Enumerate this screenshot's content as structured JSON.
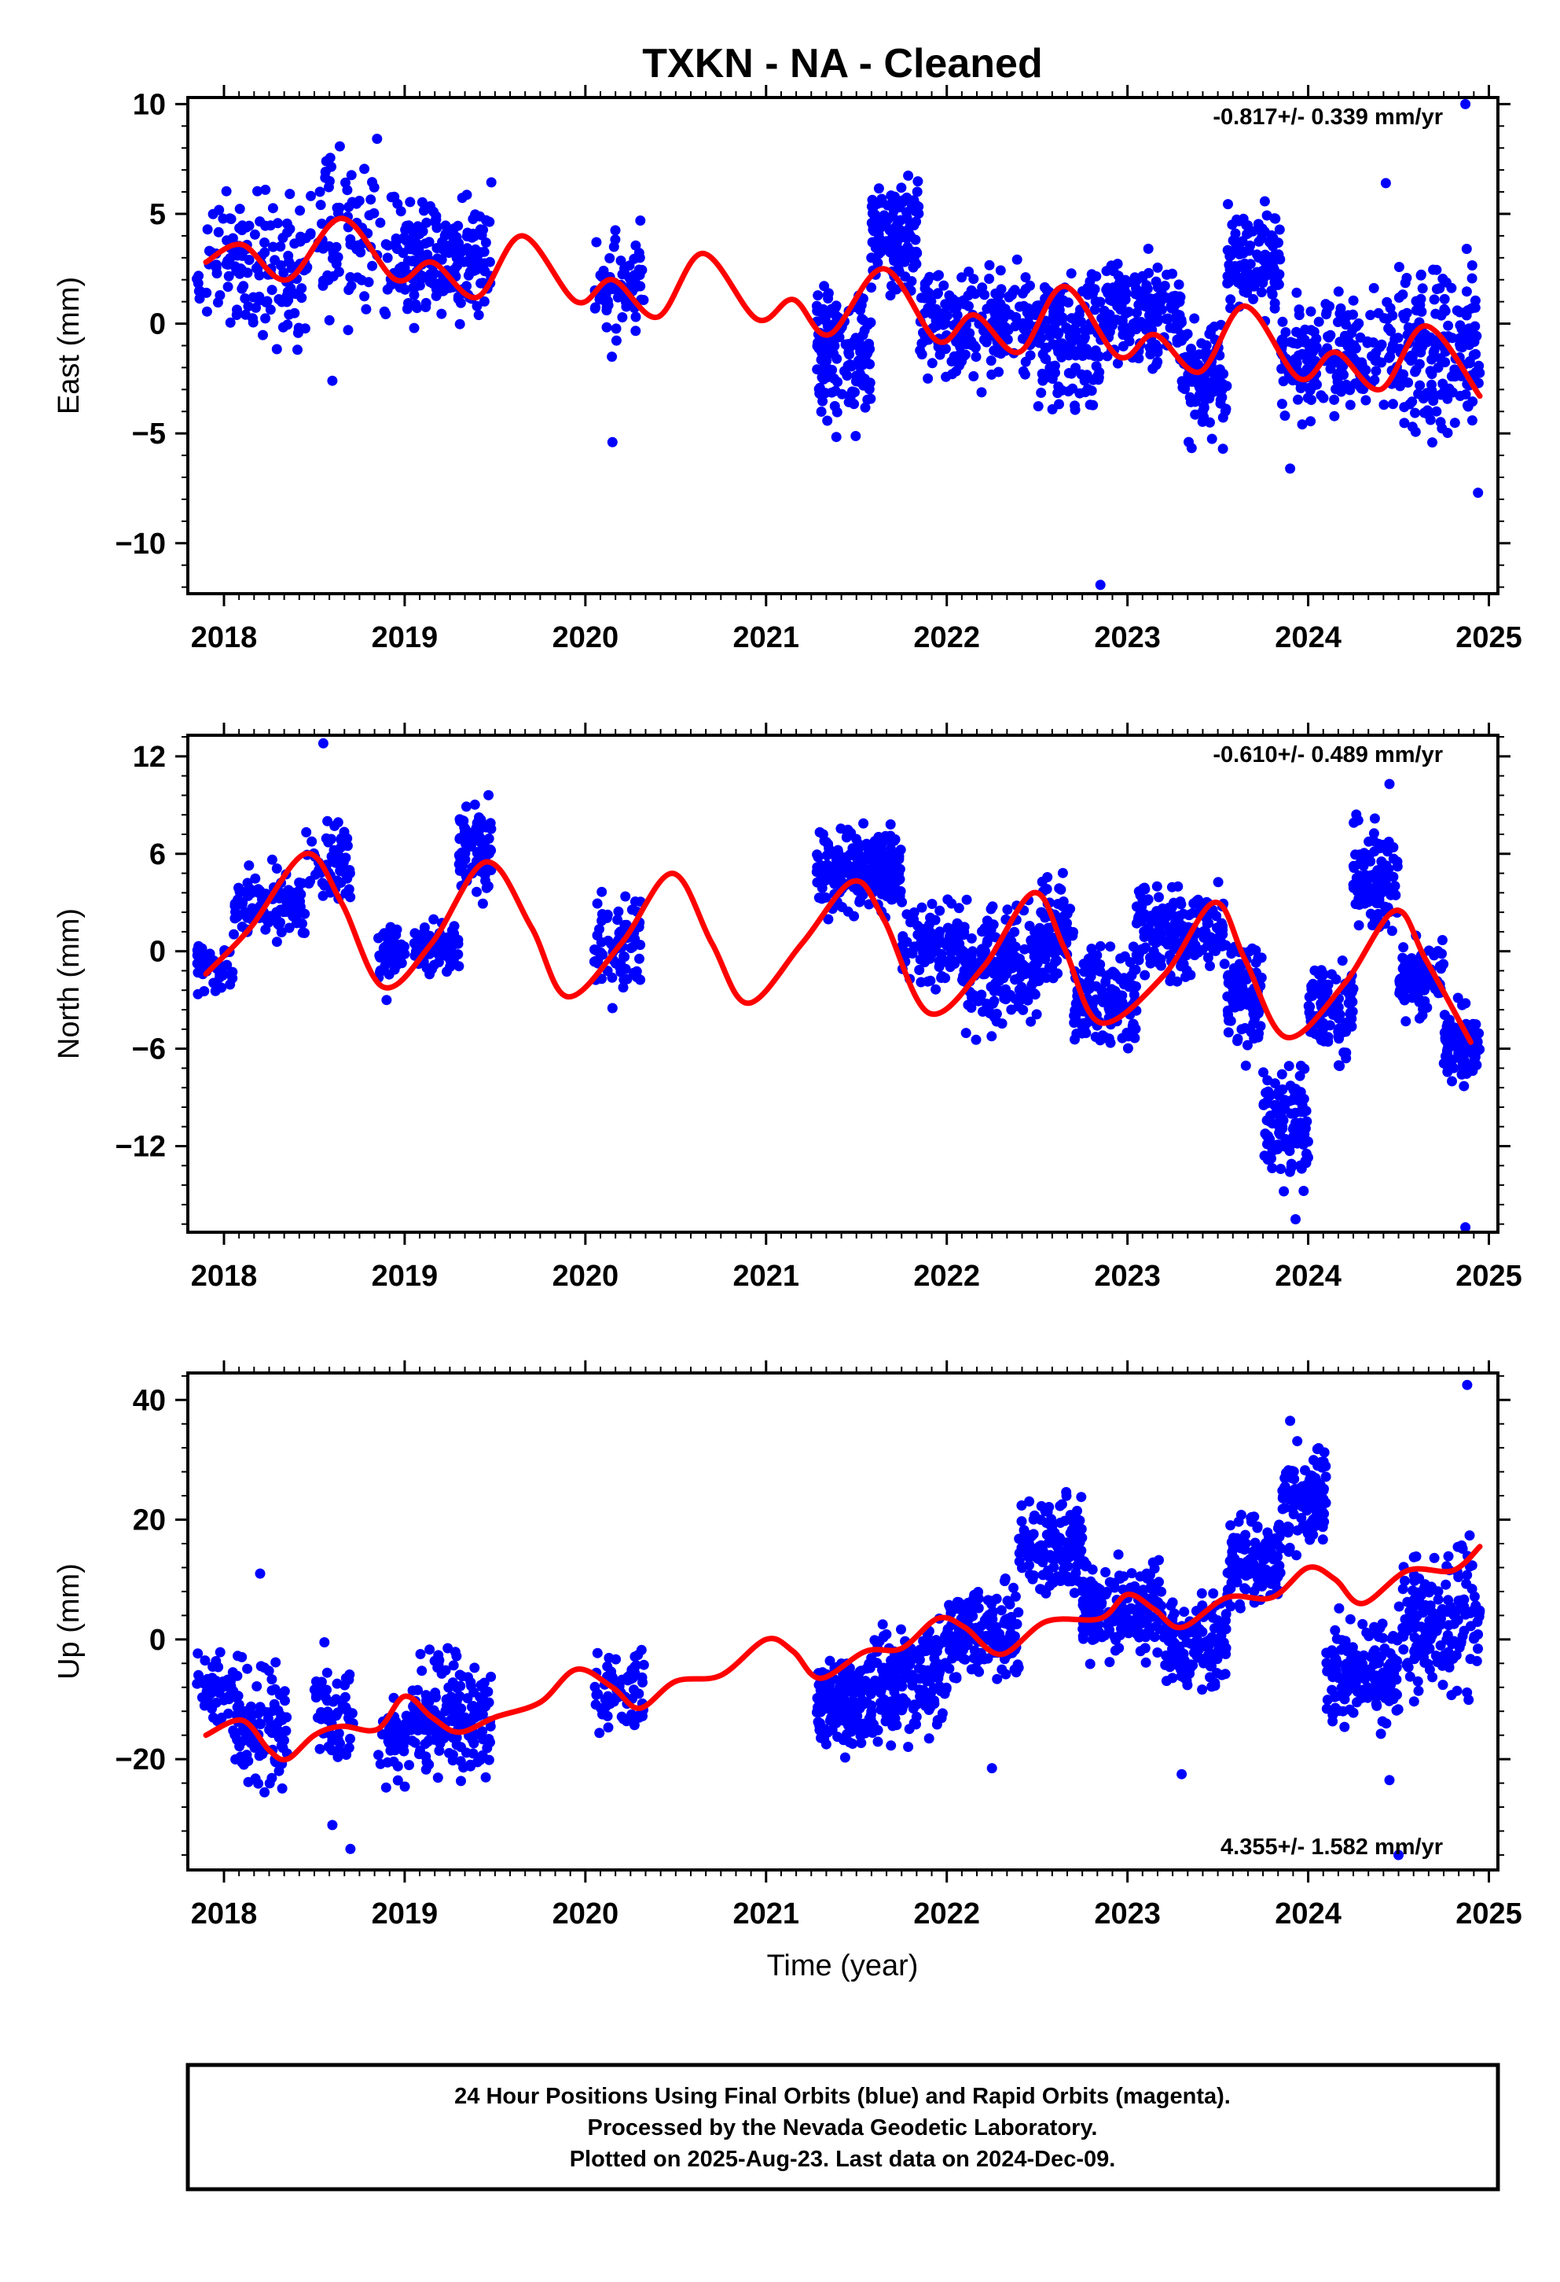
{
  "title": "TXKN  - NA - Cleaned",
  "footer": {
    "line1": "24 Hour Positions Using Final Orbits (blue) and Rapid Orbits (magenta).",
    "line2": "Processed by the Nevada Geodetic Laboratory.",
    "line3": "Plotted on 2025-Aug-23. Last data on 2024-Dec-09."
  },
  "colors": {
    "final_orbits": "#0000ff",
    "model_fit": "#ff0000",
    "axes": "#000000"
  },
  "chart_data": [
    {
      "type": "scatter",
      "ylabel": "East (mm)",
      "xlabel": "",
      "xlim": [
        2017.8,
        2025.05
      ],
      "ylim": [
        -12.3,
        10.3
      ],
      "xticks": [
        2018,
        2019,
        2020,
        2021,
        2022,
        2023,
        2024,
        2025
      ],
      "yticks": [
        10,
        5,
        0,
        -5,
        -10
      ],
      "ytick_labels": [
        "10",
        "5",
        "0",
        "−5",
        "−10"
      ],
      "rate_text": "-0.817+/- 0.339 mm/yr",
      "rate_position": "top-right",
      "trend_points": [
        [
          2017.9,
          2.8
        ],
        [
          2018.1,
          3.6
        ],
        [
          2018.35,
          2.0
        ],
        [
          2018.65,
          4.8
        ],
        [
          2018.95,
          2.0
        ],
        [
          2019.15,
          2.8
        ],
        [
          2019.4,
          1.2
        ],
        [
          2019.65,
          4.0
        ],
        [
          2019.95,
          1.0
        ],
        [
          2020.15,
          2.0
        ],
        [
          2020.4,
          0.3
        ],
        [
          2020.65,
          3.2
        ],
        [
          2020.95,
          0.2
        ],
        [
          2021.15,
          1.1
        ],
        [
          2021.35,
          -0.5
        ],
        [
          2021.65,
          2.5
        ],
        [
          2021.95,
          -0.8
        ],
        [
          2022.15,
          0.4
        ],
        [
          2022.4,
          -1.3
        ],
        [
          2022.65,
          1.7
        ],
        [
          2022.95,
          -1.5
        ],
        [
          2023.15,
          -0.5
        ],
        [
          2023.4,
          -2.2
        ],
        [
          2023.65,
          0.8
        ],
        [
          2023.95,
          -2.5
        ],
        [
          2024.15,
          -1.3
        ],
        [
          2024.4,
          -3.0
        ],
        [
          2024.65,
          -0.1
        ],
        [
          2024.95,
          -3.3
        ]
      ],
      "point_clusters": [
        {
          "x": [
            2017.85,
            2018.45
          ],
          "y": [
            -2.5,
            7.5
          ],
          "n": 140
        },
        {
          "x": [
            2018.45,
            2018.95
          ],
          "y": [
            -1.8,
            9.2
          ],
          "n": 90
        },
        {
          "x": [
            2018.95,
            2019.48
          ],
          "y": [
            -1.0,
            7.0
          ],
          "n": 200
        },
        {
          "x": [
            2020.05,
            2020.33
          ],
          "y": [
            -1.8,
            5.5
          ],
          "n": 70
        },
        {
          "x": [
            2021.28,
            2021.58
          ],
          "y": [
            -5.8,
            3.0
          ],
          "n": 150
        },
        {
          "x": [
            2021.58,
            2021.85
          ],
          "y": [
            0.5,
            7.8
          ],
          "n": 130
        },
        {
          "x": [
            2021.85,
            2022.5
          ],
          "y": [
            -3.5,
            3.5
          ],
          "n": 200
        },
        {
          "x": [
            2022.5,
            2022.85
          ],
          "y": [
            -5.2,
            3.5
          ],
          "n": 150
        },
        {
          "x": [
            2022.85,
            2023.3
          ],
          "y": [
            -3.0,
            4.0
          ],
          "n": 170
        },
        {
          "x": [
            2023.3,
            2023.55
          ],
          "y": [
            -6.3,
            1.5
          ],
          "n": 100
        },
        {
          "x": [
            2023.55,
            2023.85
          ],
          "y": [
            -0.5,
            6.2
          ],
          "n": 120
        },
        {
          "x": [
            2023.85,
            2024.5
          ],
          "y": [
            -5.0,
            2.0
          ],
          "n": 200
        },
        {
          "x": [
            2024.5,
            2024.95
          ],
          "y": [
            -6.5,
            4.0
          ],
          "n": 170
        }
      ],
      "outliers": [
        [
          2018.6,
          -2.6
        ],
        [
          2020.15,
          -5.4
        ],
        [
          2022.85,
          -11.9
        ],
        [
          2024.87,
          10.0
        ],
        [
          2024.94,
          -7.7
        ],
        [
          2023.9,
          -6.6
        ],
        [
          2024.43,
          6.4
        ]
      ]
    },
    {
      "type": "scatter",
      "ylabel": "North (mm)",
      "xlabel": "",
      "xlim": [
        2017.8,
        2025.05
      ],
      "ylim": [
        -17.3,
        13.3
      ],
      "xticks": [
        2018,
        2019,
        2020,
        2021,
        2022,
        2023,
        2024,
        2025
      ],
      "yticks": [
        12,
        6,
        0,
        -6,
        -12
      ],
      "ytick_labels": [
        "12",
        "6",
        "0",
        "−6",
        "−12"
      ],
      "rate_text": "-0.610+/- 0.489 mm/yr",
      "rate_position": "top-right",
      "trend_points": [
        [
          2017.9,
          -1.4
        ],
        [
          2018.15,
          1.5
        ],
        [
          2018.45,
          6.0
        ],
        [
          2018.65,
          3.0
        ],
        [
          2018.88,
          -2.2
        ],
        [
          2019.15,
          0.5
        ],
        [
          2019.45,
          5.5
        ],
        [
          2019.7,
          1.5
        ],
        [
          2019.9,
          -2.8
        ],
        [
          2020.2,
          0.5
        ],
        [
          2020.48,
          4.8
        ],
        [
          2020.7,
          0.5
        ],
        [
          2020.9,
          -3.2
        ],
        [
          2021.2,
          0.5
        ],
        [
          2021.48,
          4.3
        ],
        [
          2021.65,
          2.0
        ],
        [
          2021.9,
          -3.8
        ],
        [
          2022.2,
          -1.0
        ],
        [
          2022.48,
          3.6
        ],
        [
          2022.65,
          0.2
        ],
        [
          2022.85,
          -4.4
        ],
        [
          2023.2,
          -1.5
        ],
        [
          2023.48,
          3.0
        ],
        [
          2023.65,
          -0.5
        ],
        [
          2023.88,
          -5.3
        ],
        [
          2024.2,
          -2.0
        ],
        [
          2024.48,
          2.5
        ],
        [
          2024.65,
          -0.5
        ],
        [
          2024.9,
          -5.6
        ]
      ],
      "point_clusters": [
        {
          "x": [
            2017.85,
            2018.05
          ],
          "y": [
            -3.0,
            1.0
          ],
          "n": 50
        },
        {
          "x": [
            2018.05,
            2018.45
          ],
          "y": [
            -0.5,
            6.0
          ],
          "n": 100
        },
        {
          "x": [
            2018.45,
            2018.7
          ],
          "y": [
            2.0,
            8.5
          ],
          "n": 60
        },
        {
          "x": [
            2018.85,
            2019.0
          ],
          "y": [
            -2.5,
            2.5
          ],
          "n": 40
        },
        {
          "x": [
            2019.05,
            2019.3
          ],
          "y": [
            -2.0,
            2.5
          ],
          "n": 80
        },
        {
          "x": [
            2019.3,
            2019.48
          ],
          "y": [
            2.0,
            10.5
          ],
          "n": 80
        },
        {
          "x": [
            2020.05,
            2020.33
          ],
          "y": [
            -3.5,
            4.5
          ],
          "n": 70
        },
        {
          "x": [
            2021.28,
            2021.75
          ],
          "y": [
            1.5,
            8.5
          ],
          "n": 220
        },
        {
          "x": [
            2021.75,
            2022.1
          ],
          "y": [
            -3.0,
            4.0
          ],
          "n": 120
        },
        {
          "x": [
            2022.1,
            2022.5
          ],
          "y": [
            -6.0,
            4.0
          ],
          "n": 180
        },
        {
          "x": [
            2022.5,
            2022.7
          ],
          "y": [
            -3.0,
            6.0
          ],
          "n": 80
        },
        {
          "x": [
            2022.7,
            2023.05
          ],
          "y": [
            -7.0,
            1.0
          ],
          "n": 160
        },
        {
          "x": [
            2023.05,
            2023.55
          ],
          "y": [
            -2.5,
            5.5
          ],
          "n": 200
        },
        {
          "x": [
            2023.55,
            2023.75
          ],
          "y": [
            -8.0,
            2.0
          ],
          "n": 80
        },
        {
          "x": [
            2023.75,
            2024.0
          ],
          "y": [
            -16.0,
            -6.0
          ],
          "n": 120
        },
        {
          "x": [
            2024.0,
            2024.25
          ],
          "y": [
            -8.0,
            0.5
          ],
          "n": 100
        },
        {
          "x": [
            2024.25,
            2024.5
          ],
          "y": [
            0.0,
            9.0
          ],
          "n": 110
        },
        {
          "x": [
            2024.5,
            2024.75
          ],
          "y": [
            -5.0,
            2.0
          ],
          "n": 100
        },
        {
          "x": [
            2024.75,
            2024.95
          ],
          "y": [
            -9.0,
            -2.5
          ],
          "n": 90
        }
      ],
      "outliers": [
        [
          2018.55,
          12.8
        ],
        [
          2018.9,
          -3.0
        ],
        [
          2020.15,
          -3.5
        ],
        [
          2024.87,
          -17.0
        ],
        [
          2023.93,
          -16.5
        ],
        [
          2024.45,
          10.3
        ]
      ]
    },
    {
      "type": "scatter",
      "ylabel": "Up (mm)",
      "xlabel": "Time (year)",
      "xlim": [
        2017.8,
        2025.05
      ],
      "ylim": [
        -38.5,
        44.5
      ],
      "xticks": [
        2018,
        2019,
        2020,
        2021,
        2022,
        2023,
        2024,
        2025
      ],
      "yticks": [
        40,
        20,
        0,
        -20
      ],
      "ytick_labels": [
        "40",
        "20",
        "0",
        "−20"
      ],
      "rate_text": "4.355+/- 1.582 mm/yr",
      "rate_position": "bottom-right",
      "trend_points": [
        [
          2017.9,
          -16.0
        ],
        [
          2018.1,
          -13.5
        ],
        [
          2018.25,
          -18.5
        ],
        [
          2018.35,
          -20.0
        ],
        [
          2018.5,
          -16.0
        ],
        [
          2018.65,
          -14.5
        ],
        [
          2018.85,
          -15.0
        ],
        [
          2019.0,
          -9.5
        ],
        [
          2019.15,
          -13.0
        ],
        [
          2019.3,
          -15.5
        ],
        [
          2019.5,
          -13.0
        ],
        [
          2019.75,
          -10.5
        ],
        [
          2019.95,
          -5.0
        ],
        [
          2020.15,
          -8.0
        ],
        [
          2020.3,
          -11.5
        ],
        [
          2020.5,
          -7.0
        ],
        [
          2020.75,
          -6.0
        ],
        [
          2021.0,
          0.0
        ],
        [
          2021.15,
          -2.0
        ],
        [
          2021.3,
          -6.5
        ],
        [
          2021.55,
          -2.0
        ],
        [
          2021.75,
          -1.5
        ],
        [
          2021.95,
          3.5
        ],
        [
          2022.1,
          2.0
        ],
        [
          2022.3,
          -2.5
        ],
        [
          2022.55,
          3.0
        ],
        [
          2022.85,
          3.5
        ],
        [
          2023.0,
          7.5
        ],
        [
          2023.15,
          5.0
        ],
        [
          2023.3,
          2.0
        ],
        [
          2023.55,
          7.0
        ],
        [
          2023.8,
          7.0
        ],
        [
          2024.0,
          12.0
        ],
        [
          2024.15,
          10.0
        ],
        [
          2024.3,
          6.0
        ],
        [
          2024.55,
          11.5
        ],
        [
          2024.8,
          11.5
        ],
        [
          2024.95,
          15.5
        ]
      ],
      "point_clusters": [
        {
          "x": [
            2017.85,
            2018.05
          ],
          "y": [
            -17.0,
            2.0
          ],
          "n": 40
        },
        {
          "x": [
            2018.05,
            2018.35
          ],
          "y": [
            -29.0,
            0.0
          ],
          "n": 100
        },
        {
          "x": [
            2018.5,
            2018.72
          ],
          "y": [
            -26.0,
            1.0
          ],
          "n": 60
        },
        {
          "x": [
            2018.85,
            2019.05
          ],
          "y": [
            -27.0,
            -6.0
          ],
          "n": 50
        },
        {
          "x": [
            2019.05,
            2019.48
          ],
          "y": [
            -27.0,
            1.0
          ],
          "n": 180
        },
        {
          "x": [
            2020.05,
            2020.33
          ],
          "y": [
            -18.0,
            2.0
          ],
          "n": 70
        },
        {
          "x": [
            2021.28,
            2021.6
          ],
          "y": [
            -21.0,
            0.0
          ],
          "n": 160
        },
        {
          "x": [
            2021.6,
            2022.0
          ],
          "y": [
            -20.0,
            6.0
          ],
          "n": 180
        },
        {
          "x": [
            2022.0,
            2022.4
          ],
          "y": [
            -10.0,
            12.0
          ],
          "n": 180
        },
        {
          "x": [
            2022.4,
            2022.75
          ],
          "y": [
            5.0,
            26.0
          ],
          "n": 140
        },
        {
          "x": [
            2022.75,
            2023.2
          ],
          "y": [
            -6.0,
            16.0
          ],
          "n": 180
        },
        {
          "x": [
            2023.2,
            2023.55
          ],
          "y": [
            -11.0,
            10.0
          ],
          "n": 140
        },
        {
          "x": [
            2023.55,
            2023.85
          ],
          "y": [
            2.0,
            24.0
          ],
          "n": 120
        },
        {
          "x": [
            2023.85,
            2024.1
          ],
          "y": [
            12.0,
            36.0
          ],
          "n": 110
        },
        {
          "x": [
            2024.1,
            2024.5
          ],
          "y": [
            -18.0,
            6.0
          ],
          "n": 170
        },
        {
          "x": [
            2024.5,
            2024.95
          ],
          "y": [
            -14.0,
            20.0
          ],
          "n": 180
        }
      ],
      "outliers": [
        [
          2018.2,
          11.0
        ],
        [
          2018.6,
          -31.0
        ],
        [
          2018.7,
          -35.0
        ],
        [
          2022.25,
          -21.5
        ],
        [
          2023.3,
          -22.5
        ],
        [
          2024.45,
          -23.5
        ],
        [
          2024.88,
          42.5
        ],
        [
          2023.9,
          36.5
        ],
        [
          2024.5,
          -36.0
        ]
      ]
    }
  ]
}
